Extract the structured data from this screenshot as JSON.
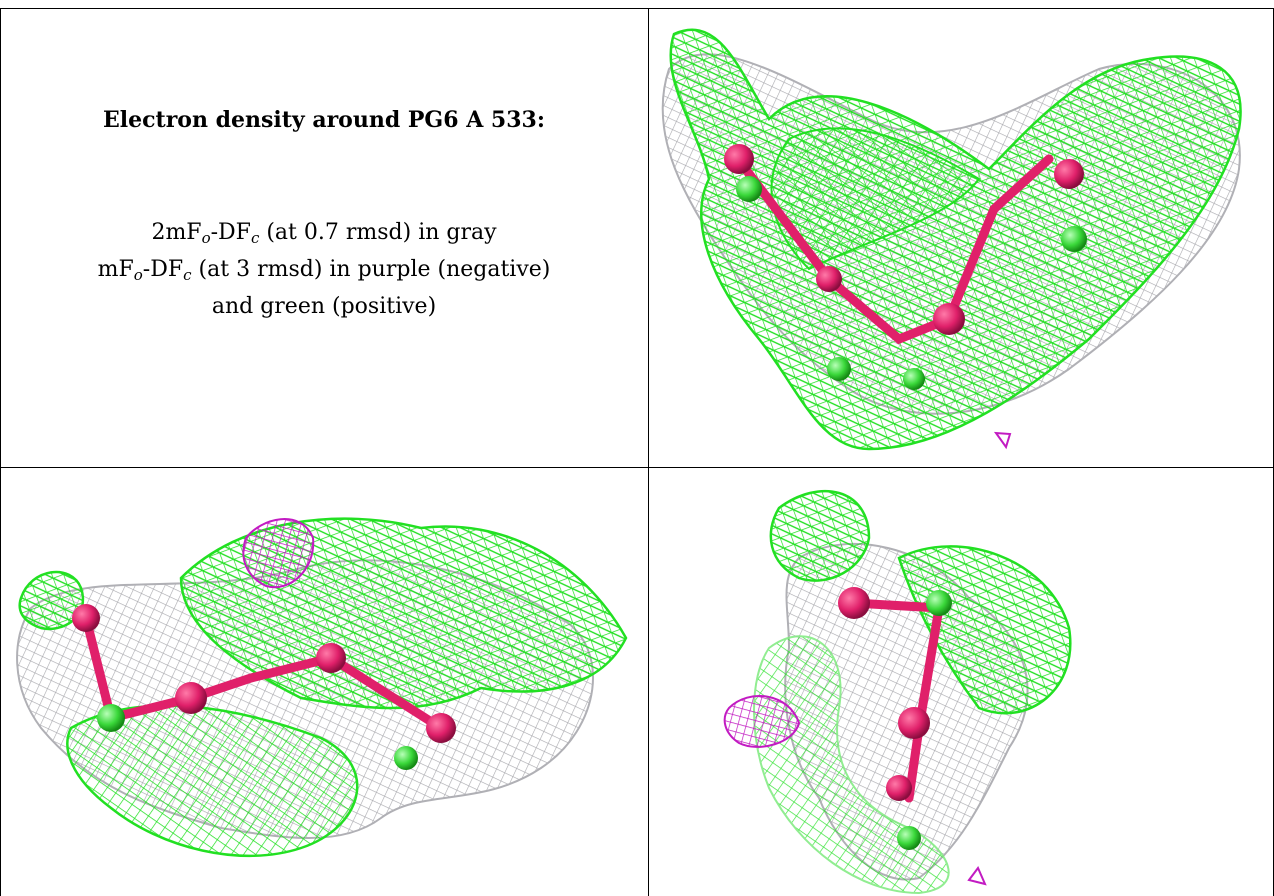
{
  "caption": {
    "title": "Electron density around PG6 A 533:",
    "line1": {
      "pre": "2mF",
      "sub1": "o",
      "mid": "-DF",
      "sub2": "c",
      "post": " (at 0.7 rmsd) in gray"
    },
    "line2": {
      "pre": "mF",
      "sub1": "o",
      "mid": "-DF",
      "sub2": "c",
      "post": " (at 3 rmsd) in purple (negative)"
    },
    "line3": "and green (positive)"
  },
  "colors": {
    "gray_mesh": "#b9b9bd",
    "green_mesh": "#2ee82e",
    "purple_mesh": "#c21bc2",
    "atom_oxygen": "#e0206a",
    "atom_carbon": "#3ad83a"
  },
  "panels": [
    {
      "name": "view-top-right"
    },
    {
      "name": "view-bottom-left"
    },
    {
      "name": "view-bottom-right"
    }
  ]
}
